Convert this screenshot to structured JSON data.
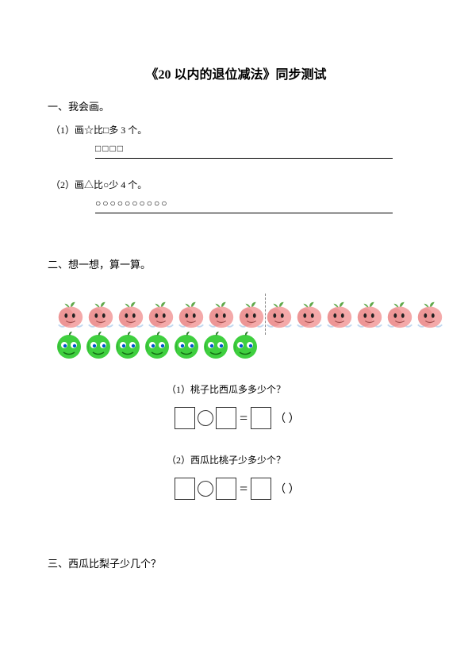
{
  "title": "《20 以内的退位减法》同步测试",
  "section1": {
    "header": "一、我会画。",
    "item1": "（1）画☆比□多 3 个。",
    "shapes1": "□□□□",
    "item2": "（2）画△比○少 4 个。",
    "shapes2": "○○○○○○○○○○"
  },
  "section2": {
    "header": "二、想一想，算一算。",
    "peach_count": 13,
    "melon_count": 7,
    "divider_after_peach_index": 7,
    "q1": "（1）桃子比西瓜多多少个？",
    "q2": "（2）西瓜比桃子少多少个？",
    "eq_symbol": "=",
    "paren": "（   ）"
  },
  "section3": {
    "header": "三、西瓜比梨子少几个？"
  },
  "colors": {
    "peach_body": "#f4a9a9",
    "peach_shadow": "#e78b8b",
    "peach_leaf": "#5fa84a",
    "melon_body": "#3fcf3f",
    "melon_shadow": "#2aa52a",
    "melon_eye": "#ffffff",
    "melon_pupil": "#0055cc",
    "text": "#000000",
    "line": "#000000"
  }
}
